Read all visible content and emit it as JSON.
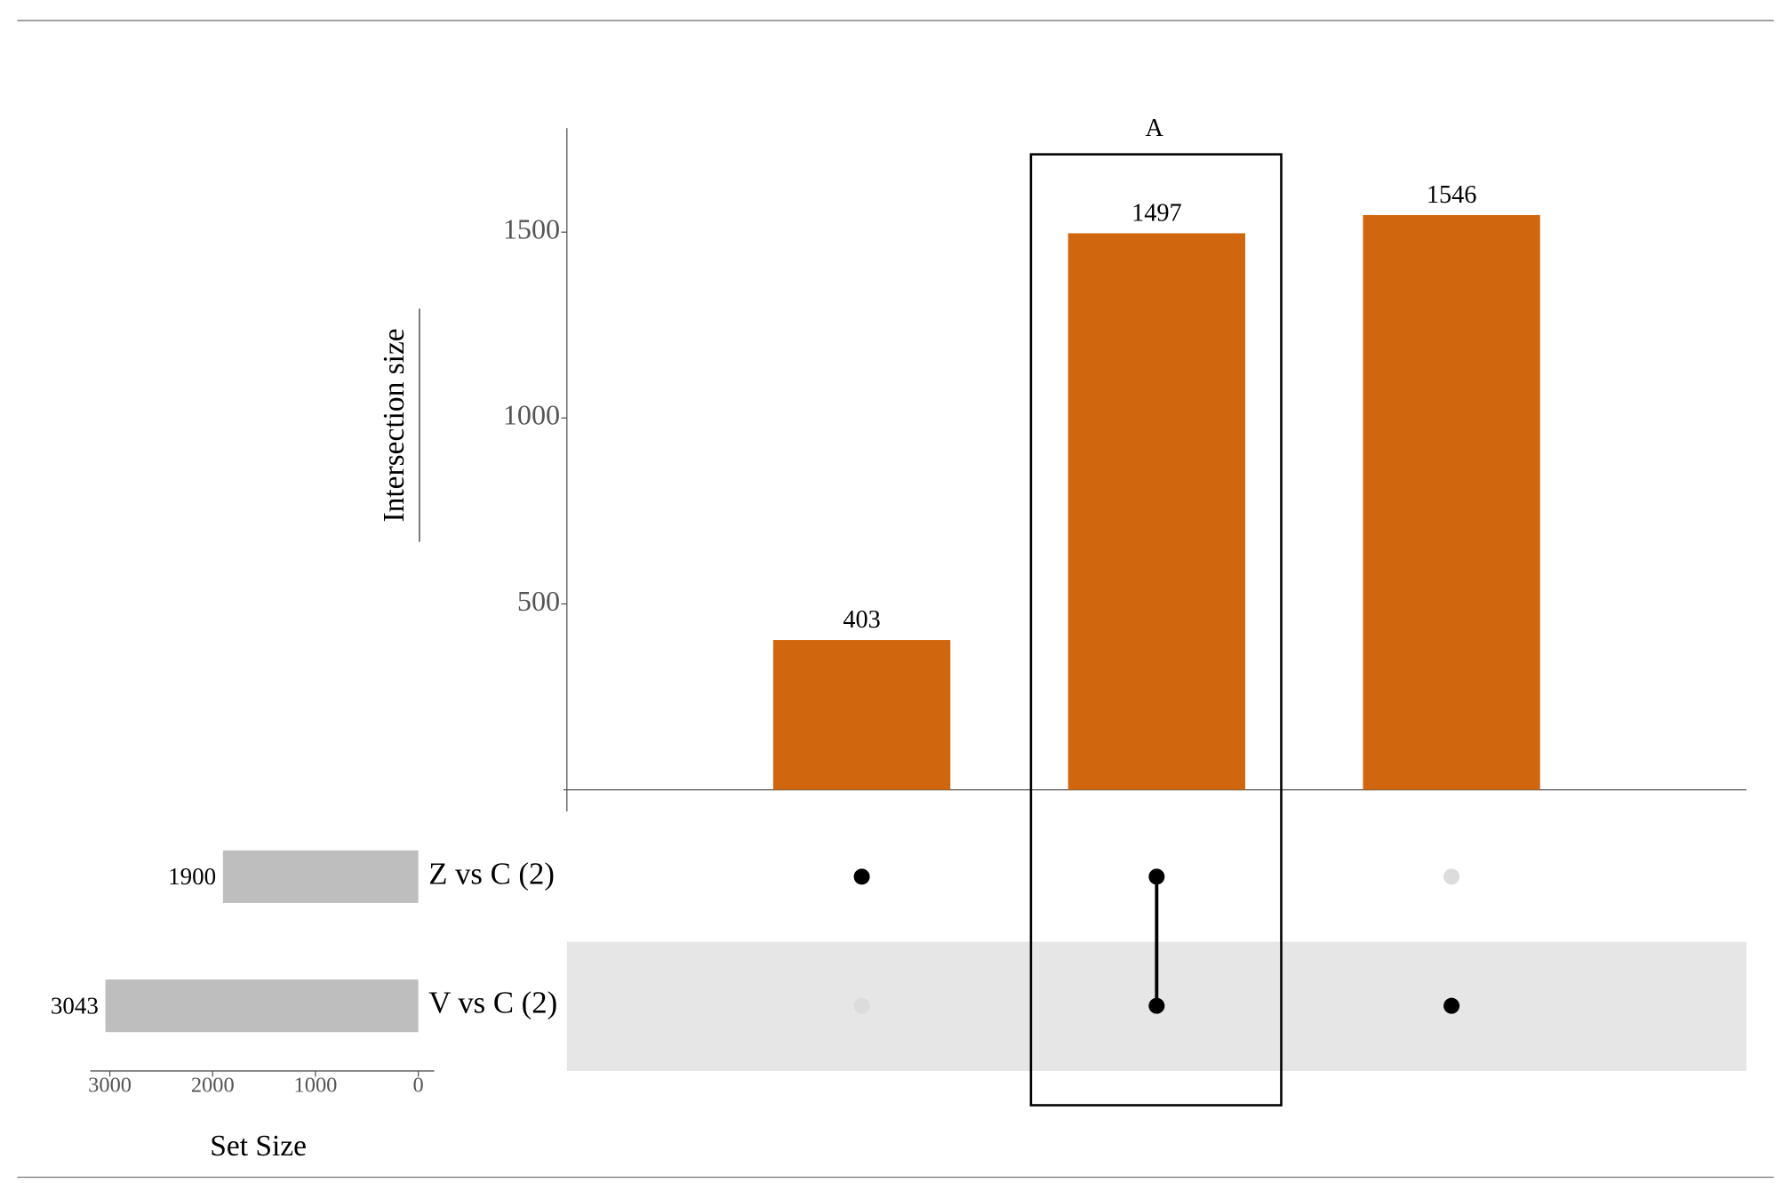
{
  "chart_data": {
    "type": "upset",
    "ylabel": "Intersection size",
    "values": [
      403,
      1497,
      1546
    ],
    "color": "#d0670f",
    "ylim": [
      0,
      1780
    ],
    "yticks": [
      500,
      1000,
      1500
    ],
    "membership": [
      [
        true,
        false
      ],
      [
        true,
        true
      ],
      [
        false,
        true
      ]
    ],
    "annotations": [
      {
        "text": "A",
        "intersection": 1
      }
    ],
    "sets": {
      "names": [
        "Z vs C (2)",
        "V vs C (2)"
      ],
      "values": [
        1900,
        3043
      ],
      "color": "#bebebe",
      "xlabel": "Set Size",
      "xlim": [
        3190,
        0
      ],
      "xticks": [
        3000,
        2000,
        1000,
        0
      ]
    }
  }
}
